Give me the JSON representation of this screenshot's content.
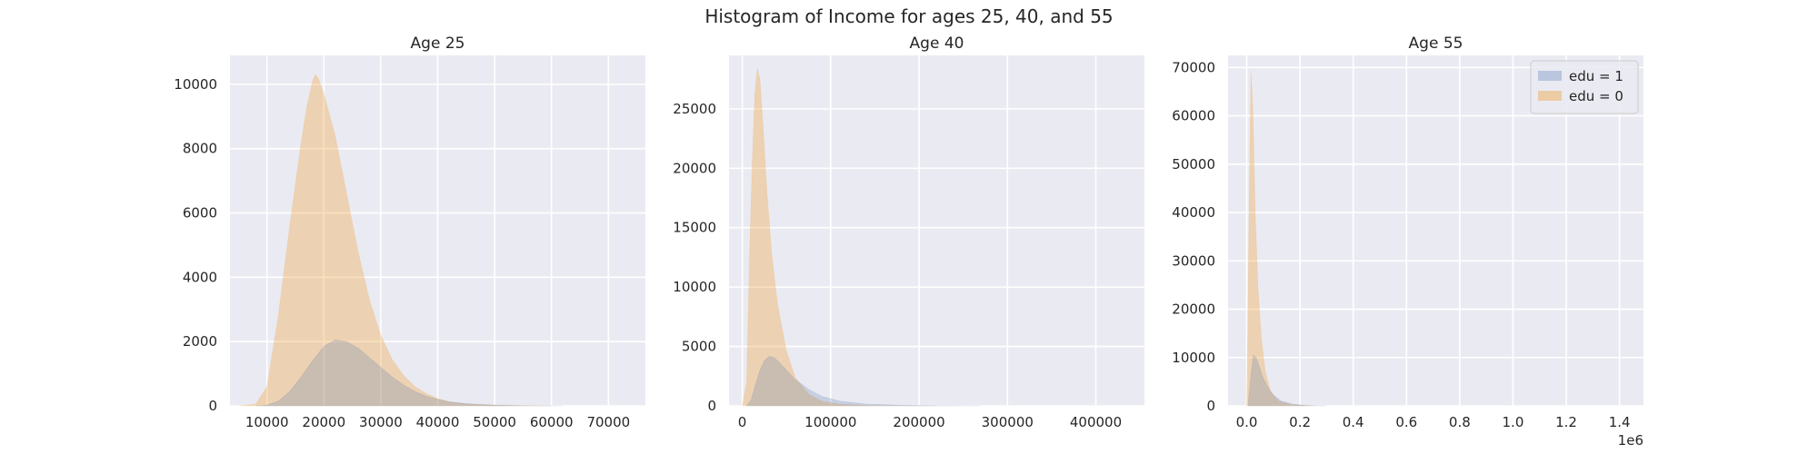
{
  "figure": {
    "title": "Histogram of Income for ages 25, 40, and 55"
  },
  "colors": {
    "background": "#EAEAF2",
    "grid": "#FFFFFF",
    "edu1": "#4C72B0",
    "edu0": "#F0A030",
    "edu1_alpha": 0.22,
    "edu0_alpha": 0.32
  },
  "chart_data": [
    {
      "type": "histogram",
      "title": "Age 25",
      "xlabel": "",
      "ylabel": "",
      "xlim": [
        3500,
        76500
      ],
      "ylim": [
        0,
        10900
      ],
      "xticks": [
        10000,
        20000,
        30000,
        40000,
        50000,
        60000,
        70000
      ],
      "xtick_labels": [
        "10000",
        "20000",
        "30000",
        "40000",
        "50000",
        "60000",
        "70000"
      ],
      "yticks": [
        0,
        2000,
        4000,
        6000,
        8000,
        10000
      ],
      "ytick_labels": [
        "0",
        "2000",
        "4000",
        "6000",
        "8000",
        "10000"
      ],
      "series": [
        {
          "key": "edu0",
          "points": [
            [
              5000,
              0
            ],
            [
              8000,
              50
            ],
            [
              10000,
              600
            ],
            [
              12000,
              2800
            ],
            [
              14000,
              5600
            ],
            [
              16000,
              8200
            ],
            [
              17000,
              9300
            ],
            [
              18000,
              10100
            ],
            [
              18500,
              10300
            ],
            [
              19000,
              10200
            ],
            [
              20000,
              9700
            ],
            [
              22000,
              8400
            ],
            [
              24000,
              6600
            ],
            [
              26000,
              4800
            ],
            [
              28000,
              3300
            ],
            [
              30000,
              2200
            ],
            [
              32000,
              1450
            ],
            [
              34000,
              950
            ],
            [
              36000,
              600
            ],
            [
              38000,
              380
            ],
            [
              40000,
              230
            ],
            [
              42000,
              130
            ],
            [
              45000,
              60
            ],
            [
              50000,
              20
            ],
            [
              55000,
              5
            ],
            [
              60000,
              0
            ]
          ]
        },
        {
          "key": "edu1",
          "points": [
            [
              8000,
              0
            ],
            [
              10000,
              20
            ],
            [
              12000,
              150
            ],
            [
              14000,
              450
            ],
            [
              16000,
              900
            ],
            [
              18000,
              1400
            ],
            [
              20000,
              1850
            ],
            [
              22000,
              2050
            ],
            [
              24000,
              2000
            ],
            [
              26000,
              1800
            ],
            [
              28000,
              1500
            ],
            [
              30000,
              1200
            ],
            [
              32000,
              900
            ],
            [
              34000,
              650
            ],
            [
              36000,
              450
            ],
            [
              38000,
              300
            ],
            [
              40000,
              200
            ],
            [
              42000,
              130
            ],
            [
              45000,
              70
            ],
            [
              50000,
              25
            ],
            [
              55000,
              8
            ],
            [
              62000,
              0
            ]
          ]
        }
      ]
    },
    {
      "type": "histogram",
      "title": "Age 40",
      "xlabel": "",
      "ylabel": "",
      "xlim": [
        -15000,
        455000
      ],
      "ylim": [
        0,
        29500
      ],
      "xticks": [
        0,
        100000,
        200000,
        300000,
        400000
      ],
      "xtick_labels": [
        "0",
        "100000",
        "200000",
        "300000",
        "400000"
      ],
      "yticks": [
        0,
        5000,
        10000,
        15000,
        20000,
        25000
      ],
      "ytick_labels": [
        "0",
        "5000",
        "10000",
        "15000",
        "20000",
        "25000"
      ],
      "series": [
        {
          "key": "edu0",
          "points": [
            [
              0,
              0
            ],
            [
              5000,
              2000
            ],
            [
              8000,
              12000
            ],
            [
              11000,
              20000
            ],
            [
              14000,
              26000
            ],
            [
              17000,
              28400
            ],
            [
              20000,
              27500
            ],
            [
              24000,
              23000
            ],
            [
              28000,
              18000
            ],
            [
              33000,
              13000
            ],
            [
              40000,
              8500
            ],
            [
              50000,
              4600
            ],
            [
              60000,
              2400
            ],
            [
              75000,
              1000
            ],
            [
              90000,
              400
            ],
            [
              110000,
              150
            ],
            [
              140000,
              40
            ],
            [
              180000,
              10
            ],
            [
              220000,
              0
            ]
          ]
        },
        {
          "key": "edu1",
          "points": [
            [
              5000,
              0
            ],
            [
              10000,
              500
            ],
            [
              15000,
              1800
            ],
            [
              20000,
              3000
            ],
            [
              25000,
              3800
            ],
            [
              30000,
              4150
            ],
            [
              35000,
              4100
            ],
            [
              40000,
              3800
            ],
            [
              50000,
              3000
            ],
            [
              60000,
              2200
            ],
            [
              75000,
              1400
            ],
            [
              90000,
              800
            ],
            [
              110000,
              400
            ],
            [
              140000,
              150
            ],
            [
              180000,
              50
            ],
            [
              220000,
              15
            ],
            [
              270000,
              0
            ]
          ]
        }
      ]
    },
    {
      "type": "histogram",
      "title": "Age 55",
      "xlabel": "",
      "ylabel": "",
      "xlim": [
        -70000,
        1490000
      ],
      "ylim": [
        0,
        72500
      ],
      "xticks": [
        0,
        200000,
        400000,
        600000,
        800000,
        1000000,
        1200000,
        1400000
      ],
      "xtick_labels": [
        "0.0",
        "0.2",
        "0.4",
        "0.6",
        "0.8",
        "1.0",
        "1.2",
        "1.4"
      ],
      "x_offset_label": "1e6",
      "yticks": [
        0,
        10000,
        20000,
        30000,
        40000,
        50000,
        60000,
        70000
      ],
      "ytick_labels": [
        "0",
        "10000",
        "20000",
        "30000",
        "40000",
        "50000",
        "60000",
        "70000"
      ],
      "legend": {
        "placement": "top-right",
        "entries": [
          {
            "label": "edu = 1",
            "key": "edu1"
          },
          {
            "label": "edu = 0",
            "key": "edu0"
          }
        ]
      },
      "series": [
        {
          "key": "edu0",
          "points": [
            [
              0,
              0
            ],
            [
              8000,
              35000
            ],
            [
              16000,
              69500
            ],
            [
              24000,
              60000
            ],
            [
              32000,
              40000
            ],
            [
              42000,
              25000
            ],
            [
              55000,
              14000
            ],
            [
              70000,
              7000
            ],
            [
              90000,
              3000
            ],
            [
              120000,
              1000
            ],
            [
              170000,
              250
            ],
            [
              250000,
              0
            ]
          ]
        },
        {
          "key": "edu1",
          "points": [
            [
              5000,
              0
            ],
            [
              15000,
              6000
            ],
            [
              25000,
              10500
            ],
            [
              35000,
              10000
            ],
            [
              45000,
              8500
            ],
            [
              60000,
              6000
            ],
            [
              80000,
              3800
            ],
            [
              100000,
              2200
            ],
            [
              130000,
              1000
            ],
            [
              170000,
              400
            ],
            [
              220000,
              100
            ],
            [
              300000,
              0
            ]
          ]
        }
      ]
    }
  ]
}
